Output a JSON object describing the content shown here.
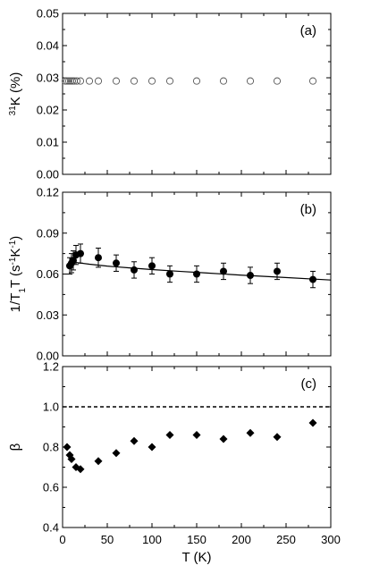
{
  "chart_data": [
    {
      "type": "scatter",
      "panel_label": "(a)",
      "ylabel": {
        "sup": "31",
        "main": "K (%)"
      },
      "ylim": [
        0,
        0.05
      ],
      "yticks": [
        "0.00",
        "0.01",
        "0.02",
        "0.03",
        "0.04",
        "0.05"
      ],
      "xlim": [
        0,
        300
      ],
      "marker": "open-circle",
      "x": [
        3,
        5,
        7,
        9,
        11,
        13,
        16,
        20,
        30,
        40,
        60,
        80,
        100,
        120,
        150,
        180,
        210,
        240,
        280
      ],
      "y": [
        0.029,
        0.029,
        0.029,
        0.029,
        0.029,
        0.029,
        0.029,
        0.029,
        0.029,
        0.029,
        0.029,
        0.029,
        0.029,
        0.029,
        0.029,
        0.029,
        0.029,
        0.029,
        0.029
      ]
    },
    {
      "type": "scatter",
      "panel_label": "(b)",
      "ylabel": {
        "a": "1/T",
        "sub": "1",
        "b": "T (s",
        "sup1": "-1",
        "c": "K",
        "sup2": "-1",
        "d": ")"
      },
      "ylim": [
        0,
        0.12
      ],
      "yticks": [
        "0.00",
        "0.03",
        "0.06",
        "0.09",
        "0.12"
      ],
      "xlim": [
        0,
        300
      ],
      "marker": "filled-circle",
      "x": [
        8,
        10,
        12,
        15,
        20,
        40,
        60,
        80,
        100,
        120,
        150,
        180,
        210,
        240,
        280
      ],
      "y": [
        0.066,
        0.068,
        0.07,
        0.074,
        0.075,
        0.072,
        0.068,
        0.063,
        0.066,
        0.06,
        0.06,
        0.062,
        0.059,
        0.062,
        0.056
      ],
      "yerr": [
        0.006,
        0.007,
        0.007,
        0.007,
        0.007,
        0.007,
        0.006,
        0.006,
        0.006,
        0.006,
        0.006,
        0.006,
        0.006,
        0.006,
        0.006
      ],
      "fit_line": {
        "x": [
          8,
          15,
          30,
          50,
          75,
          100,
          130,
          160,
          200,
          240,
          300
        ],
        "y": [
          0.0695,
          0.0685,
          0.0672,
          0.0658,
          0.0645,
          0.0633,
          0.062,
          0.0608,
          0.0592,
          0.0578,
          0.0556
        ]
      }
    },
    {
      "type": "scatter",
      "panel_label": "(c)",
      "ylabel": {
        "main": "β"
      },
      "ylim": [
        0.4,
        1.2
      ],
      "yticks": [
        "0.4",
        "0.6",
        "0.8",
        "1.0",
        "1.2"
      ],
      "xlim": [
        0,
        300
      ],
      "xticks": [
        "0",
        "50",
        "100",
        "150",
        "200",
        "250",
        "300"
      ],
      "xlabel": "T (K)",
      "marker": "filled-diamond",
      "x": [
        5,
        8,
        10,
        15,
        20,
        40,
        60,
        80,
        100,
        120,
        150,
        180,
        210,
        240,
        280
      ],
      "y": [
        0.8,
        0.76,
        0.74,
        0.7,
        0.69,
        0.73,
        0.77,
        0.83,
        0.8,
        0.86,
        0.86,
        0.84,
        0.87,
        0.85,
        0.92
      ],
      "hline": 1.0
    }
  ]
}
